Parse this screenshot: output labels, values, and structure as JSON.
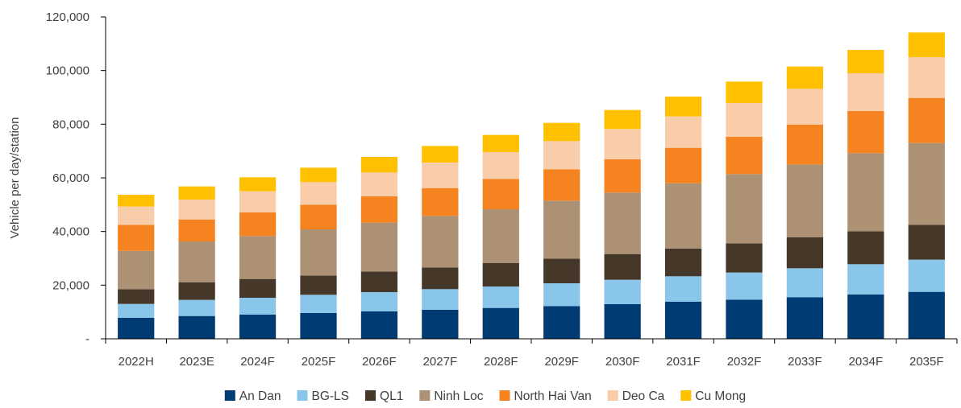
{
  "chart_data": {
    "type": "bar",
    "stacked": true,
    "title": "",
    "xlabel": "",
    "ylabel": "Vehicle per day/station",
    "ylim": [
      0,
      120000
    ],
    "yticks": [
      0,
      20000,
      40000,
      60000,
      80000,
      100000,
      120000
    ],
    "ytick_labels": [
      "-",
      "20,000",
      "40,000",
      "60,000",
      "80,000",
      "100,000",
      "120,000"
    ],
    "grid": false,
    "legend_position": "bottom",
    "categories": [
      "2022H",
      "2023E",
      "2024F",
      "2025F",
      "2026F",
      "2027F",
      "2028F",
      "2029F",
      "2030F",
      "2031F",
      "2032F",
      "2033F",
      "2034F",
      "2035F"
    ],
    "series": [
      {
        "name": "An Dan",
        "color": "#003b73",
        "values": [
          7800,
          8500,
          9000,
          9600,
          10200,
          10800,
          11500,
          12200,
          12900,
          13800,
          14600,
          15500,
          16500,
          17500
        ]
      },
      {
        "name": "BG-LS",
        "color": "#8ac6ea",
        "values": [
          5200,
          6000,
          6300,
          6800,
          7200,
          7700,
          8000,
          8500,
          9100,
          9500,
          10100,
          10800,
          11300,
          12000
        ]
      },
      {
        "name": "QL1",
        "color": "#453829",
        "values": [
          5500,
          6600,
          7000,
          7200,
          7700,
          8100,
          8700,
          9200,
          9600,
          10300,
          10900,
          11600,
          12300,
          13000
        ]
      },
      {
        "name": "Ninh Loc",
        "color": "#ad9175",
        "values": [
          14300,
          15200,
          16000,
          17200,
          18200,
          19200,
          20100,
          21600,
          22900,
          24400,
          25800,
          27100,
          29100,
          30500
        ]
      },
      {
        "name": "North Hai Van",
        "color": "#f5831f",
        "values": [
          9700,
          8200,
          8800,
          9200,
          9800,
          10400,
          11300,
          11700,
          12400,
          13200,
          13900,
          14800,
          15700,
          16800
        ]
      },
      {
        "name": "Deo Ca",
        "color": "#f9ccaa",
        "values": [
          6800,
          7400,
          7900,
          8400,
          8900,
          9500,
          10000,
          10500,
          11300,
          11700,
          12600,
          13400,
          14100,
          15200
        ]
      },
      {
        "name": "Cu Mong",
        "color": "#ffc000",
        "values": [
          4400,
          4900,
          5200,
          5400,
          5800,
          6200,
          6400,
          6800,
          7100,
          7400,
          8000,
          8300,
          8700,
          9200
        ]
      }
    ]
  }
}
